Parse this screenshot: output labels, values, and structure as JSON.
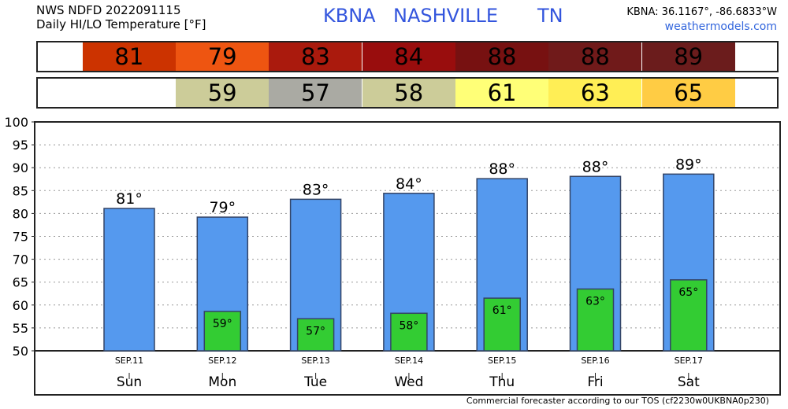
{
  "header": {
    "line1": "NWS NDFD 2022091115",
    "line2": "Daily HI/LO Temperature [°F]",
    "station_code": "KBNA",
    "station_name": "NASHVILLE",
    "state": "TN",
    "coords": "KBNA: 36.1167°, -86.6833°W",
    "site": "weathermodels.com"
  },
  "footer": "Commercial forecaster according to our TOS (cf2230w0UKBNA0p230)",
  "colors": {
    "hi_bar": "#5599ee",
    "lo_bar": "#33cc33",
    "station_text": "#3355dd",
    "hi_strip": [
      "#cc3300",
      "#ee5511",
      "#aa1a0d",
      "#990d0d",
      "#771111",
      "#701a1a",
      "#6b1c1c"
    ],
    "lo_strip": [
      null,
      "#cccc99",
      "#aaaaa3",
      "#cccc99",
      "#ffff77",
      "#ffee55",
      "#ffcc44"
    ]
  },
  "chart_data": {
    "type": "bar",
    "days": [
      "Sun",
      "Mon",
      "Tue",
      "Wed",
      "Thu",
      "Fri",
      "Sat"
    ],
    "dates": [
      "SEP.11",
      "SEP.12",
      "SEP.13",
      "SEP.14",
      "SEP.15",
      "SEP.16",
      "SEP.17"
    ],
    "series": [
      {
        "name": "HI",
        "values": [
          81,
          79,
          83,
          84,
          88,
          88,
          89
        ],
        "plot_values": [
          81.1,
          79.2,
          83.1,
          84.4,
          87.6,
          88.1,
          88.6
        ]
      },
      {
        "name": "LO",
        "values": [
          null,
          59,
          57,
          58,
          61,
          63,
          65
        ],
        "plot_values": [
          null,
          58.6,
          57.0,
          58.2,
          61.5,
          63.5,
          65.5
        ]
      }
    ],
    "ylim": [
      50,
      100
    ],
    "yticks": [
      50,
      55,
      60,
      65,
      70,
      75,
      80,
      85,
      90,
      95,
      100
    ],
    "grid": true
  }
}
